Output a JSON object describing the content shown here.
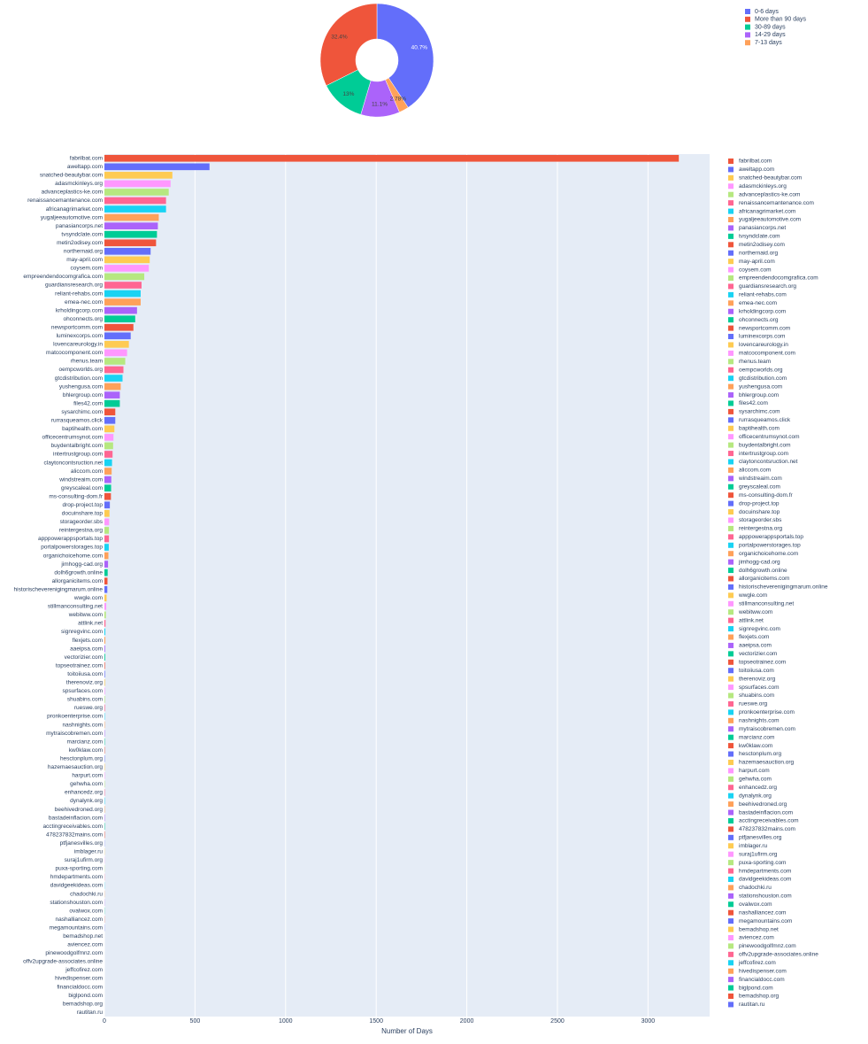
{
  "chart_data": [
    {
      "type": "pie",
      "hole": true,
      "labels": [
        "0-6 days",
        "More than 90 days",
        "30-89 days",
        "14-29 days",
        "7-13 days"
      ],
      "values": [
        40.7,
        32.4,
        13,
        11.1,
        2.78
      ],
      "value_labels": [
        "40.7%",
        "32.4%",
        "13%",
        "11.1%",
        "2.78%"
      ],
      "colors": [
        "#636EFA",
        "#EF553B",
        "#00CC96",
        "#AB63FA",
        "#FFA15A"
      ],
      "legend": "top-right"
    },
    {
      "type": "hbar",
      "x_label": "Number of Days",
      "categories": [
        "fabrilbat.com",
        "aweltapp.com",
        "snatched-beautybar.com",
        "adasmckinleys.org",
        "advanceplastics-ke.com",
        "renaissancemantenance.com",
        "africanagrimarket.com",
        "yugaljeeautomotive.com",
        "panasiancorps.net",
        "tvsyndclate.com",
        "metin2odisey.com",
        "northernaid.org",
        "may-april.com",
        "coysem.com",
        "empreendendocomgrafica.com",
        "guardiansresearch.org",
        "reliant-rehabs.com",
        "emea-nec.com",
        "krholdingcorp.com",
        "ohconnects.org",
        "newsportcomm.com",
        "luminexcorps.com",
        "lovencareurology.in",
        "matcocomponent.com",
        "rhenus.team",
        "oempcworlds.org",
        "gtcdistribution.com",
        "yushengusa.com",
        "bhlergroup.com",
        "files42.com",
        "sysarchimc.com",
        "rurrasqueamos.click",
        "baptihealth.com",
        "officecentrumsynot.com",
        "buydentalbright.com",
        "intertrustgroup.com",
        "claytoncontsruction.net",
        "aliccom.com",
        "windstreaim.com",
        "greyscaleal.com",
        "ms-consulting-dom.fr",
        "drop-project.top",
        "docuinshare.top",
        "storageorder.sbs",
        "reintergestna.org",
        "apppowerappsportals.top",
        "portalpowerstorages.top",
        "organichoicehome.com",
        "jimhogg-cad.org",
        "dolh6growth.online",
        "allorganicitems.com",
        "historischeverenigingmarum.online",
        "wwgle.com",
        "stillmanconsulting.net",
        "webitww.com",
        "attlink.net",
        "signregvinc.com",
        "flexjets.com",
        "aaeipsa.com",
        "vectorizier.com",
        "topseotrainez.com",
        "toitoiiusa.com",
        "therenoviz.org",
        "spsurfaces.com",
        "shuabins.com",
        "rueswe.org",
        "pronkoenterprise.com",
        "nashnights.com",
        "mytraiscobremen.com",
        "marcianz.com",
        "kw0klaw.com",
        "hesctonplum.org",
        "hazemaesauction.org",
        "harpurt.com",
        "gehwha.com",
        "enhancedz.org",
        "dynalynk.org",
        "beehivedroned.org",
        "bastadeinflacion.com",
        "acctingreceivables.com",
        "478237832mains.com",
        "ptfjanesvilles.org",
        "imblager.ru",
        "suraj1ufirm.org",
        "puxa-sporting.com",
        "hmdepartments.com",
        "davidgeekideas.com",
        "chadochki.ru",
        "stationshouston.com",
        "ovalwox.com",
        "nashalliancez.com",
        "megamountains.com",
        "bemadshop.net",
        "aviencez.com",
        "pinewoodgolfmnz.com",
        "offv2upgrade-associates.online",
        "jeffcofirez.com",
        "hivedispenser.com",
        "financialdocc.com",
        "biglpond.com",
        "bemadshop.org",
        "rautitan.ru"
      ],
      "values": [
        3170,
        580,
        375,
        365,
        355,
        340,
        340,
        300,
        295,
        290,
        285,
        255,
        250,
        245,
        220,
        205,
        200,
        200,
        180,
        170,
        160,
        145,
        135,
        125,
        115,
        105,
        100,
        90,
        85,
        85,
        60,
        60,
        55,
        50,
        48,
        45,
        42,
        40,
        38,
        37,
        36,
        30,
        28,
        26,
        25,
        25,
        24,
        22,
        20,
        18,
        17,
        16,
        12,
        10,
        8,
        6,
        5,
        5,
        4,
        4,
        3,
        3,
        3,
        3,
        3,
        3,
        2,
        2,
        2,
        2,
        2,
        2,
        2,
        2,
        2,
        2,
        2,
        2,
        2,
        2,
        2,
        1,
        1,
        1,
        1,
        1,
        1,
        1,
        1,
        1,
        1,
        1,
        0,
        0,
        0,
        0,
        0,
        0,
        0,
        0,
        0,
        0
      ],
      "color_cycle": [
        "#EF553B",
        "#636EFA",
        "#FECB52",
        "#FF97FF",
        "#B6E880",
        "#FF6692",
        "#19D3F3",
        "#FFA15A",
        "#AB63FA",
        "#00CC96"
      ],
      "xlim": [
        0,
        3340
      ],
      "xticks": [
        0,
        500,
        1000,
        1500,
        2000,
        2500,
        3000
      ],
      "grid": true,
      "legend": "right"
    }
  ]
}
